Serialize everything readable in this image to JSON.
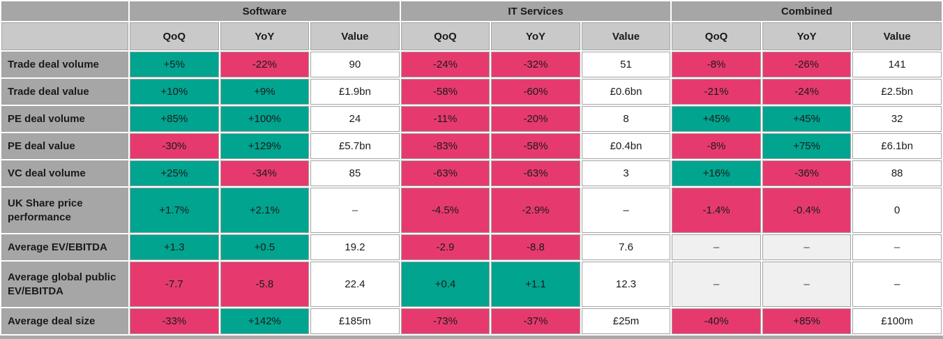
{
  "colors": {
    "positive_teal": "#00a48f",
    "negative_pink": "#e63a6e",
    "header_gray": "#a6a6a6",
    "subheader_gray": "#c9c9c9",
    "na_cell_gray": "#f0f0f0",
    "dash_navy": "#1f4268"
  },
  "chart_data": {
    "type": "table",
    "column_groups": [
      "Software",
      "IT Services",
      "Combined"
    ],
    "columns_per_group": [
      "QoQ",
      "YoY",
      "Value"
    ],
    "rows": [
      {
        "label": "Trade deal volume",
        "cells": [
          {
            "text": "+5%",
            "bg": "pos"
          },
          {
            "text": "-22%",
            "bg": "neg"
          },
          {
            "text": "90",
            "bg": "value"
          },
          {
            "text": "-24%",
            "bg": "neg"
          },
          {
            "text": "-32%",
            "bg": "neg"
          },
          {
            "text": "51",
            "bg": "value"
          },
          {
            "text": "-8%",
            "bg": "neg"
          },
          {
            "text": "-26%",
            "bg": "neg"
          },
          {
            "text": "141",
            "bg": "value"
          }
        ]
      },
      {
        "label": "Trade deal value",
        "cells": [
          {
            "text": "+10%",
            "bg": "pos"
          },
          {
            "text": "+9%",
            "bg": "pos"
          },
          {
            "text": "£1.9bn",
            "bg": "value"
          },
          {
            "text": "-58%",
            "bg": "neg"
          },
          {
            "text": "-60%",
            "bg": "neg"
          },
          {
            "text": "£0.6bn",
            "bg": "value"
          },
          {
            "text": "-21%",
            "bg": "neg"
          },
          {
            "text": "-24%",
            "bg": "neg"
          },
          {
            "text": "£2.5bn",
            "bg": "value"
          }
        ]
      },
      {
        "label": "PE deal volume",
        "cells": [
          {
            "text": "+85%",
            "bg": "pos"
          },
          {
            "text": "+100%",
            "bg": "pos"
          },
          {
            "text": "24",
            "bg": "value"
          },
          {
            "text": "-11%",
            "bg": "neg"
          },
          {
            "text": "-20%",
            "bg": "neg"
          },
          {
            "text": "8",
            "bg": "value"
          },
          {
            "text": "+45%",
            "bg": "pos"
          },
          {
            "text": "+45%",
            "bg": "pos"
          },
          {
            "text": "32",
            "bg": "value"
          }
        ]
      },
      {
        "label": "PE deal value",
        "cells": [
          {
            "text": "-30%",
            "bg": "neg"
          },
          {
            "text": "+129%",
            "bg": "pos"
          },
          {
            "text": "£5.7bn",
            "bg": "value"
          },
          {
            "text": "-83%",
            "bg": "neg"
          },
          {
            "text": "-58%",
            "bg": "neg"
          },
          {
            "text": "£0.4bn",
            "bg": "value"
          },
          {
            "text": "-8%",
            "bg": "neg"
          },
          {
            "text": "+75%",
            "bg": "pos"
          },
          {
            "text": "£6.1bn",
            "bg": "value"
          }
        ]
      },
      {
        "label": "VC deal volume",
        "cells": [
          {
            "text": "+25%",
            "bg": "pos"
          },
          {
            "text": "-34%",
            "bg": "neg"
          },
          {
            "text": "85",
            "bg": "value"
          },
          {
            "text": "-63%",
            "bg": "neg"
          },
          {
            "text": "-63%",
            "bg": "neg"
          },
          {
            "text": "3",
            "bg": "value"
          },
          {
            "text": "+16%",
            "bg": "pos"
          },
          {
            "text": "-36%",
            "bg": "neg"
          },
          {
            "text": "88",
            "bg": "value"
          }
        ]
      },
      {
        "label": "UK Share price performance",
        "tall": true,
        "cells": [
          {
            "text": "+1.7%",
            "bg": "pos"
          },
          {
            "text": "+2.1%",
            "bg": "pos"
          },
          {
            "text": "–",
            "bg": "value",
            "fg": "navy"
          },
          {
            "text": "-4.5%",
            "bg": "neg"
          },
          {
            "text": "-2.9%",
            "bg": "neg"
          },
          {
            "text": "–",
            "bg": "value"
          },
          {
            "text": "-1.4%",
            "bg": "neg"
          },
          {
            "text": "-0.4%",
            "bg": "neg"
          },
          {
            "text": "0",
            "bg": "value"
          }
        ]
      },
      {
        "label": "Average EV/EBITDA",
        "cells": [
          {
            "text": "+1.3",
            "bg": "pos"
          },
          {
            "text": "+0.5",
            "bg": "pos"
          },
          {
            "text": "19.2",
            "bg": "value"
          },
          {
            "text": "-2.9",
            "bg": "neg"
          },
          {
            "text": "-8.8",
            "bg": "neg"
          },
          {
            "text": "7.6",
            "bg": "value"
          },
          {
            "text": "–",
            "bg": "na",
            "fg": "navy"
          },
          {
            "text": "–",
            "bg": "na",
            "fg": "navy"
          },
          {
            "text": "–",
            "bg": "value",
            "fg": "navy"
          }
        ]
      },
      {
        "label": "Average global public EV/EBITDA",
        "tall": true,
        "cells": [
          {
            "text": "-7.7",
            "bg": "neg"
          },
          {
            "text": "-5.8",
            "bg": "neg"
          },
          {
            "text": "22.4",
            "bg": "value"
          },
          {
            "text": "+0.4",
            "bg": "pos"
          },
          {
            "text": "+1.1",
            "bg": "pos"
          },
          {
            "text": "12.3",
            "bg": "value"
          },
          {
            "text": "–",
            "bg": "na",
            "fg": "navy"
          },
          {
            "text": "–",
            "bg": "na",
            "fg": "navy"
          },
          {
            "text": "–",
            "bg": "value"
          }
        ]
      },
      {
        "label": "Average deal size",
        "cells": [
          {
            "text": "-33%",
            "bg": "neg"
          },
          {
            "text": "+142%",
            "bg": "pos"
          },
          {
            "text": "£185m",
            "bg": "value"
          },
          {
            "text": "-73%",
            "bg": "neg"
          },
          {
            "text": "-37%",
            "bg": "neg"
          },
          {
            "text": "£25m",
            "bg": "value"
          },
          {
            "text": "-40%",
            "bg": "neg"
          },
          {
            "text": "+85%",
            "bg": "neg"
          },
          {
            "text": "£100m",
            "bg": "value"
          }
        ]
      }
    ]
  }
}
